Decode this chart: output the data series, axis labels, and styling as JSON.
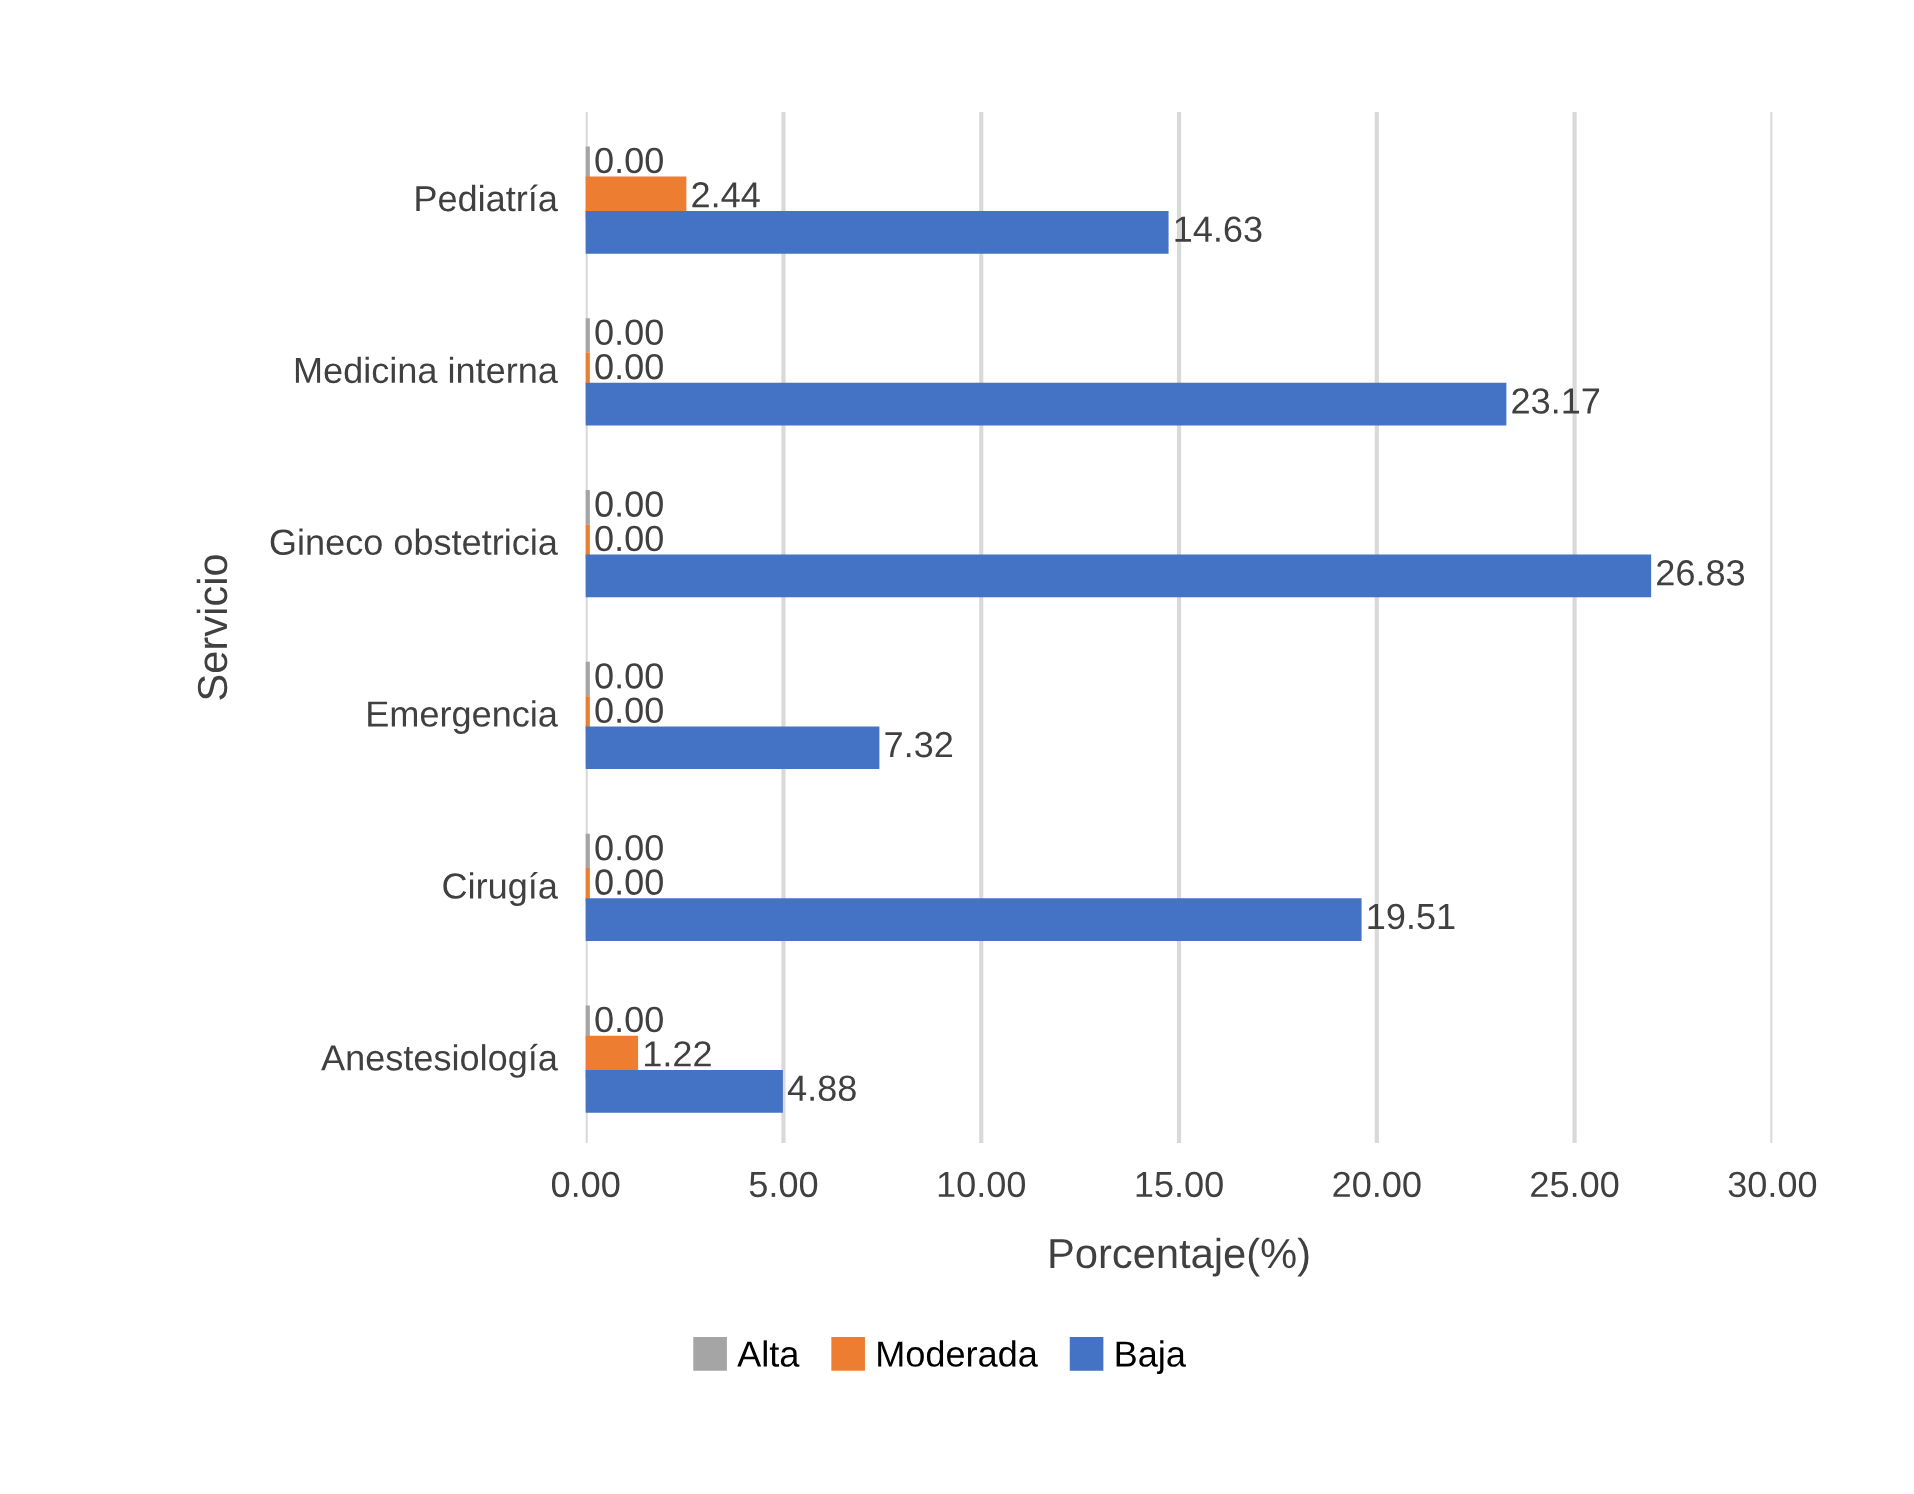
{
  "chart_data": {
    "type": "bar",
    "orientation": "horizontal",
    "categories": [
      "Pediatría",
      "Medicina interna",
      "Gineco obstetricia",
      "Emergencia",
      "Cirugía",
      "Anestesiología"
    ],
    "series": [
      {
        "name": "Alta",
        "color": "#a5a5a5",
        "values": [
          0.0,
          0.0,
          0.0,
          0.0,
          0.0,
          0.0
        ],
        "value_labels": [
          "0.00",
          "0.00",
          "0.00",
          "0.00",
          "0.00",
          "0.00"
        ]
      },
      {
        "name": "Moderada",
        "color": "#ed7d31",
        "values": [
          2.44,
          0.0,
          0.0,
          0.0,
          0.0,
          1.22
        ],
        "value_labels": [
          "2.44",
          "0.00",
          "0.00",
          "0.00",
          "0.00",
          "1.22"
        ]
      },
      {
        "name": "Baja",
        "color": "#4472c4",
        "values": [
          14.63,
          23.17,
          26.83,
          7.32,
          19.51,
          4.88
        ],
        "value_labels": [
          "14.63",
          "23.17",
          "26.83",
          "7.32",
          "19.51",
          "4.88"
        ]
      }
    ],
    "xlabel": "Porcentaje(%)",
    "ylabel": "Servicio",
    "xlim": [
      0,
      30
    ],
    "xticks": [
      {
        "value": 0,
        "label": "0.00"
      },
      {
        "value": 5,
        "label": "5.00"
      },
      {
        "value": 10,
        "label": "10.00"
      },
      {
        "value": 15,
        "label": "15.00"
      },
      {
        "value": 20,
        "label": "20.00"
      },
      {
        "value": 25,
        "label": "25.00"
      },
      {
        "value": 30,
        "label": "30.00"
      }
    ],
    "grid": "x",
    "legend": "bottom"
  }
}
